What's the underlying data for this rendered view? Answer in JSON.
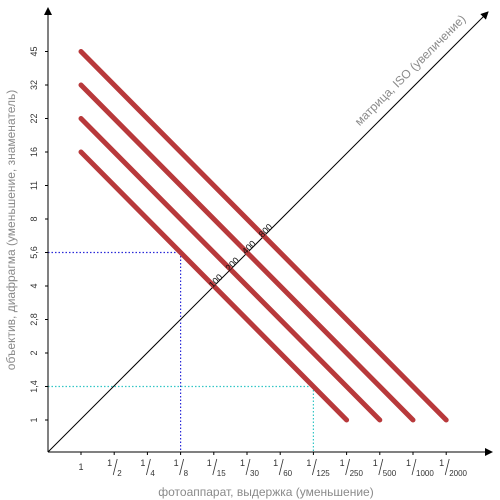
{
  "chart_data": {
    "type": "line",
    "xlabel": "фотоаппарат, выдержка (уменьшение)",
    "ylabel": "объектив, диафрагма (уменьшение, знаменатель)",
    "diag_label": "матрица, ISO (увеличение)",
    "x_ticks": [
      {
        "num": "1",
        "den": ""
      },
      {
        "num": "1",
        "den": "2"
      },
      {
        "num": "1",
        "den": "4"
      },
      {
        "num": "1",
        "den": "8"
      },
      {
        "num": "1",
        "den": "15"
      },
      {
        "num": "1",
        "den": "30"
      },
      {
        "num": "1",
        "den": "60"
      },
      {
        "num": "1",
        "den": "125"
      },
      {
        "num": "1",
        "den": "250"
      },
      {
        "num": "1",
        "den": "500"
      },
      {
        "num": "1",
        "den": "1000"
      },
      {
        "num": "1",
        "den": "2000"
      }
    ],
    "y_ticks": [
      "1",
      "1,4",
      "2",
      "2,8",
      "4",
      "5,6",
      "8",
      "11",
      "16",
      "22",
      "32",
      "45"
    ],
    "series": [
      {
        "name": "100",
        "start_index": [
          0,
          8
        ],
        "end_index": [
          8,
          0
        ],
        "label_index": [
          4,
          4
        ]
      },
      {
        "name": "200",
        "start_index": [
          0,
          9
        ],
        "end_index": [
          9,
          0
        ],
        "label_index": [
          4.5,
          4.5
        ]
      },
      {
        "name": "400",
        "start_index": [
          0,
          10
        ],
        "end_index": [
          10,
          0
        ],
        "label_index": [
          5,
          5
        ]
      },
      {
        "name": "800",
        "start_index": [
          0,
          11
        ],
        "end_index": [
          11,
          0
        ],
        "label_index": [
          5.5,
          5.5
        ]
      }
    ],
    "guides": [
      {
        "color": "#2a2ad8",
        "x_index": 3,
        "y_index": 5
      },
      {
        "color": "#33c6c6",
        "x_index": 7,
        "y_index": 1
      }
    ],
    "colors": {
      "series": "#b8393b",
      "axis": "#000000",
      "diagonal": "#000000"
    }
  }
}
